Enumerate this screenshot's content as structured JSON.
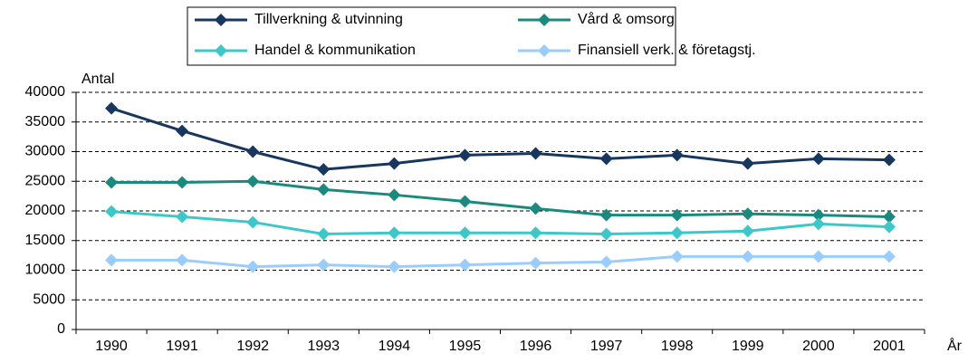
{
  "chart_data": {
    "type": "line",
    "y_label": "Antal",
    "x_label": "År",
    "categories": [
      "1990",
      "1991",
      "1992",
      "1993",
      "1994",
      "1995",
      "1996",
      "1997",
      "1998",
      "1999",
      "2000",
      "2001"
    ],
    "series": [
      {
        "name": "Tillverkning & utvinning",
        "color": "#17375e",
        "values": [
          37300,
          33500,
          30000,
          27000,
          28000,
          29400,
          29700,
          28800,
          29400,
          28000,
          28800,
          28600
        ]
      },
      {
        "name": "Vård & omsorg",
        "color": "#1a8a7f",
        "values": [
          24800,
          24800,
          25000,
          23600,
          22700,
          21600,
          20400,
          19300,
          19300,
          19500,
          19300,
          19000
        ]
      },
      {
        "name": "Handel & kommunikation",
        "color": "#3cc8c8",
        "values": [
          19900,
          19000,
          18100,
          16100,
          16300,
          16300,
          16300,
          16100,
          16300,
          16600,
          17800,
          17300
        ]
      },
      {
        "name": "Finansiell verk. & företagstj.",
        "color": "#99ccff",
        "values": [
          11700,
          11700,
          10600,
          10900,
          10600,
          10900,
          11200,
          11400,
          12300,
          12300,
          12300,
          12300
        ]
      }
    ],
    "ylim": [
      0,
      40000
    ],
    "yticks": [
      0,
      5000,
      10000,
      15000,
      20000,
      25000,
      30000,
      35000,
      40000
    ],
    "grid": true
  }
}
